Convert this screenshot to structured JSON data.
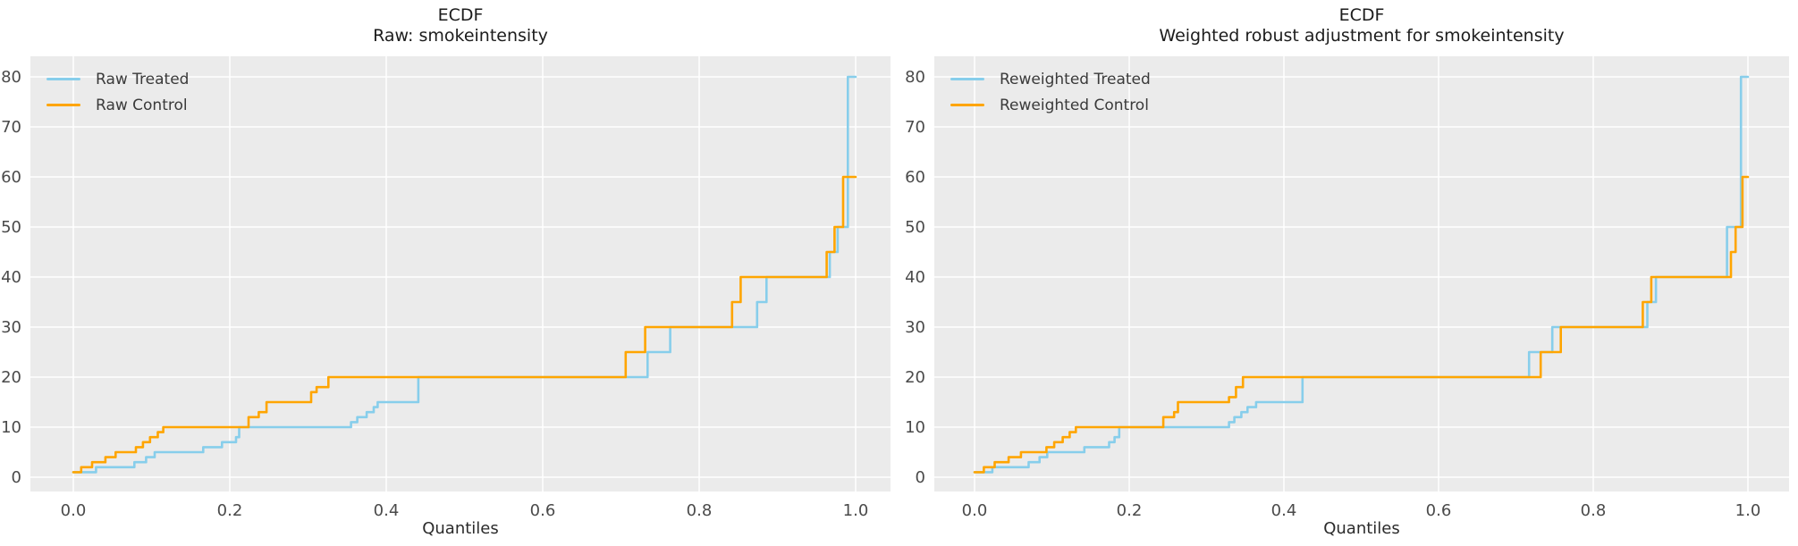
{
  "figure": {
    "background": "#ffffff",
    "axes_background": "#ebebeb",
    "grid_color": "#ffffff",
    "tick_color": "#4a4a4a",
    "title_color": "#1c1c1c",
    "treated_color": "#87CEEB",
    "control_color": "#FFA500"
  },
  "chart_data": [
    {
      "type": "line",
      "variant": "ecdf-quantile-step",
      "title_line1": "ECDF",
      "title_line2": "Raw: smokeintensity",
      "xlabel": "Quantiles",
      "ylabel": "",
      "xlim": [
        0.0,
        1.0
      ],
      "ylim": [
        0,
        80
      ],
      "grid": true,
      "legend_position": "upper-left",
      "x_ticks": [
        0.0,
        0.2,
        0.4,
        0.6,
        0.8,
        1.0
      ],
      "x_tick_labels": [
        "0.0",
        "0.2",
        "0.4",
        "0.6",
        "0.8",
        "1.0"
      ],
      "y_ticks": [
        0,
        10,
        20,
        30,
        40,
        50,
        60,
        70,
        80
      ],
      "y_tick_labels": [
        "0",
        "10",
        "20",
        "30",
        "40",
        "50",
        "60",
        "70",
        "80"
      ],
      "series": [
        {
          "name": "Raw Treated",
          "color": "#87CEEB",
          "steps_quantile_value": [
            [
              0.0,
              1
            ],
            [
              0.029,
              2
            ],
            [
              0.078,
              3
            ],
            [
              0.093,
              4
            ],
            [
              0.104,
              5
            ],
            [
              0.166,
              6
            ],
            [
              0.19,
              7
            ],
            [
              0.208,
              8
            ],
            [
              0.212,
              10
            ],
            [
              0.355,
              11
            ],
            [
              0.363,
              12
            ],
            [
              0.375,
              13
            ],
            [
              0.384,
              14
            ],
            [
              0.389,
              15
            ],
            [
              0.441,
              20
            ],
            [
              0.734,
              25
            ],
            [
              0.763,
              30
            ],
            [
              0.874,
              35
            ],
            [
              0.886,
              40
            ],
            [
              0.967,
              45
            ],
            [
              0.977,
              50
            ],
            [
              0.99,
              80
            ]
          ]
        },
        {
          "name": "Raw Control",
          "color": "#FFA500",
          "steps_quantile_value": [
            [
              0.0,
              1
            ],
            [
              0.01,
              2
            ],
            [
              0.024,
              3
            ],
            [
              0.041,
              4
            ],
            [
              0.054,
              5
            ],
            [
              0.08,
              6
            ],
            [
              0.089,
              7
            ],
            [
              0.098,
              8
            ],
            [
              0.108,
              9
            ],
            [
              0.115,
              10
            ],
            [
              0.224,
              12
            ],
            [
              0.237,
              13
            ],
            [
              0.247,
              15
            ],
            [
              0.304,
              17
            ],
            [
              0.311,
              18
            ],
            [
              0.326,
              20
            ],
            [
              0.706,
              25
            ],
            [
              0.731,
              30
            ],
            [
              0.842,
              35
            ],
            [
              0.853,
              40
            ],
            [
              0.963,
              45
            ],
            [
              0.973,
              50
            ],
            [
              0.984,
              60
            ]
          ]
        }
      ]
    },
    {
      "type": "line",
      "variant": "ecdf-quantile-step",
      "title_line1": "ECDF",
      "title_line2": "Weighted robust adjustment for smokeintensity",
      "xlabel": "Quantiles",
      "ylabel": "",
      "xlim": [
        0.0,
        1.0
      ],
      "ylim": [
        0,
        80
      ],
      "grid": true,
      "legend_position": "upper-left",
      "x_ticks": [
        0.0,
        0.2,
        0.4,
        0.6,
        0.8,
        1.0
      ],
      "x_tick_labels": [
        "0.0",
        "0.2",
        "0.4",
        "0.6",
        "0.8",
        "1.0"
      ],
      "y_ticks": [
        0,
        10,
        20,
        30,
        40,
        50,
        60,
        70,
        80
      ],
      "y_tick_labels": [
        "0",
        "10",
        "20",
        "30",
        "40",
        "50",
        "60",
        "70",
        "80"
      ],
      "series": [
        {
          "name": "Reweighted Treated",
          "color": "#87CEEB",
          "steps_quantile_value": [
            [
              0.0,
              1
            ],
            [
              0.023,
              2
            ],
            [
              0.07,
              3
            ],
            [
              0.084,
              4
            ],
            [
              0.094,
              5
            ],
            [
              0.142,
              6
            ],
            [
              0.174,
              7
            ],
            [
              0.181,
              8
            ],
            [
              0.187,
              10
            ],
            [
              0.329,
              11
            ],
            [
              0.336,
              12
            ],
            [
              0.345,
              13
            ],
            [
              0.353,
              14
            ],
            [
              0.364,
              15
            ],
            [
              0.424,
              20
            ],
            [
              0.717,
              25
            ],
            [
              0.747,
              30
            ],
            [
              0.87,
              35
            ],
            [
              0.881,
              40
            ],
            [
              0.973,
              50
            ],
            [
              0.991,
              80
            ]
          ]
        },
        {
          "name": "Reweighted Control",
          "color": "#FFA500",
          "steps_quantile_value": [
            [
              0.0,
              1
            ],
            [
              0.012,
              2
            ],
            [
              0.026,
              3
            ],
            [
              0.044,
              4
            ],
            [
              0.06,
              5
            ],
            [
              0.093,
              6
            ],
            [
              0.103,
              7
            ],
            [
              0.114,
              8
            ],
            [
              0.123,
              9
            ],
            [
              0.131,
              10
            ],
            [
              0.244,
              12
            ],
            [
              0.258,
              13
            ],
            [
              0.263,
              15
            ],
            [
              0.329,
              16
            ],
            [
              0.338,
              18
            ],
            [
              0.347,
              20
            ],
            [
              0.732,
              25
            ],
            [
              0.758,
              30
            ],
            [
              0.864,
              35
            ],
            [
              0.875,
              40
            ],
            [
              0.978,
              45
            ],
            [
              0.984,
              50
            ],
            [
              0.993,
              60
            ]
          ]
        }
      ]
    }
  ]
}
